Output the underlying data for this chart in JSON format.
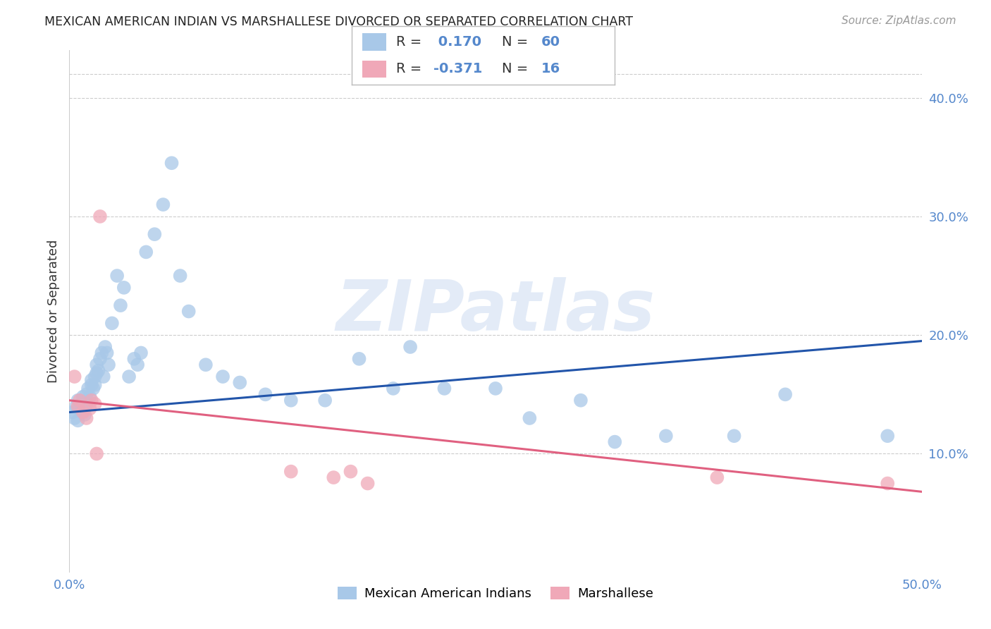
{
  "title": "MEXICAN AMERICAN INDIAN VS MARSHALLESE DIVORCED OR SEPARATED CORRELATION CHART",
  "source": "Source: ZipAtlas.com",
  "ylabel": "Divorced or Separated",
  "xlim": [
    0.0,
    0.5
  ],
  "ylim": [
    0.0,
    0.44
  ],
  "xticks": [
    0.0,
    0.1,
    0.2,
    0.3,
    0.4,
    0.5
  ],
  "xticklabels": [
    "0.0%",
    "",
    "",
    "",
    "",
    "50.0%"
  ],
  "yticks_right": [
    0.1,
    0.2,
    0.3,
    0.4
  ],
  "ytick_right_labels": [
    "10.0%",
    "20.0%",
    "30.0%",
    "40.0%"
  ],
  "blue_r": 0.17,
  "blue_n": 60,
  "pink_r": -0.371,
  "pink_n": 16,
  "blue_color": "#a8c8e8",
  "blue_line_color": "#2255aa",
  "pink_color": "#f0a8b8",
  "pink_line_color": "#e06080",
  "legend_blue_label": "Mexican American Indians",
  "legend_pink_label": "Marshallese",
  "watermark": "ZIPatlas",
  "blue_line_x0": 0.0,
  "blue_line_x1": 0.5,
  "blue_line_y0": 0.135,
  "blue_line_y1": 0.195,
  "pink_line_x0": 0.0,
  "pink_line_x1": 0.5,
  "pink_line_y0": 0.145,
  "pink_line_y1": 0.068,
  "blue_scatter_x": [
    0.002,
    0.003,
    0.004,
    0.005,
    0.005,
    0.006,
    0.007,
    0.008,
    0.008,
    0.009,
    0.01,
    0.01,
    0.011,
    0.012,
    0.013,
    0.013,
    0.014,
    0.015,
    0.015,
    0.016,
    0.016,
    0.017,
    0.018,
    0.019,
    0.02,
    0.021,
    0.022,
    0.023,
    0.025,
    0.028,
    0.03,
    0.032,
    0.035,
    0.038,
    0.04,
    0.042,
    0.045,
    0.05,
    0.055,
    0.06,
    0.065,
    0.07,
    0.08,
    0.09,
    0.1,
    0.115,
    0.13,
    0.15,
    0.17,
    0.19,
    0.2,
    0.22,
    0.25,
    0.27,
    0.3,
    0.32,
    0.35,
    0.39,
    0.42,
    0.48
  ],
  "blue_scatter_y": [
    0.135,
    0.13,
    0.14,
    0.145,
    0.128,
    0.138,
    0.142,
    0.136,
    0.148,
    0.133,
    0.15,
    0.142,
    0.155,
    0.148,
    0.158,
    0.162,
    0.155,
    0.165,
    0.158,
    0.168,
    0.175,
    0.17,
    0.18,
    0.185,
    0.165,
    0.19,
    0.185,
    0.175,
    0.21,
    0.25,
    0.225,
    0.24,
    0.165,
    0.18,
    0.175,
    0.185,
    0.27,
    0.285,
    0.31,
    0.345,
    0.25,
    0.22,
    0.175,
    0.165,
    0.16,
    0.15,
    0.145,
    0.145,
    0.18,
    0.155,
    0.19,
    0.155,
    0.155,
    0.13,
    0.145,
    0.11,
    0.115,
    0.115,
    0.15,
    0.115
  ],
  "pink_scatter_x": [
    0.003,
    0.005,
    0.006,
    0.008,
    0.01,
    0.012,
    0.013,
    0.015,
    0.016,
    0.018,
    0.13,
    0.155,
    0.165,
    0.175,
    0.38,
    0.48
  ],
  "pink_scatter_y": [
    0.165,
    0.14,
    0.145,
    0.135,
    0.13,
    0.138,
    0.145,
    0.142,
    0.1,
    0.3,
    0.085,
    0.08,
    0.085,
    0.075,
    0.08,
    0.075
  ]
}
